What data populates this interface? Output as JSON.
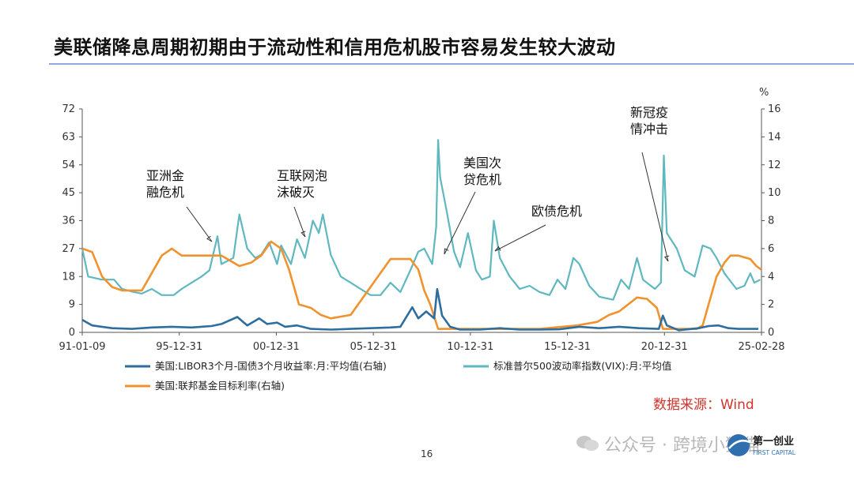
{
  "slide": {
    "title": "美联储降息周期初期由于流动性和信用危机股市容易发生较大波动",
    "page_number": "16",
    "source": "数据来源：Wind",
    "watermark": "公众号 · 跨境小狮猫",
    "logo_text": "第一创业",
    "logo_subtext": "FIRST CAPITAL"
  },
  "chart_data": {
    "type": "line",
    "x_tick_labels": [
      "91-01-09",
      "95-12-31",
      "00-12-31",
      "05-12-31",
      "10-12-31",
      "15-12-31",
      "20-12-31",
      "25-02-28"
    ],
    "y_left": {
      "range": [
        0,
        72
      ],
      "ticks": [
        "0",
        "9",
        "18",
        "27",
        "36",
        "45",
        "54",
        "63",
        "72"
      ]
    },
    "y_right": {
      "range": [
        0,
        16
      ],
      "unit": "%",
      "ticks": [
        "0",
        "2",
        "4",
        "6",
        "8",
        "10",
        "12",
        "14",
        "16"
      ]
    },
    "grid": false,
    "legend_position": "bottom",
    "annotations": [
      {
        "lines": [
          "亚洲金",
          "融危机"
        ]
      },
      {
        "lines": [
          "互联网泡",
          "沫破灭"
        ]
      },
      {
        "lines": [
          "美国次",
          "贷危机"
        ]
      },
      {
        "lines": [
          "欧债危机"
        ]
      },
      {
        "lines": [
          "新冠疫",
          "情冲击"
        ]
      }
    ],
    "series": [
      {
        "name": "美国:LIBOR3个月-国债3个月收益率:月:平均值(右轴)",
        "axis": "right",
        "color": "#2e6e9e",
        "points": [
          [
            1991.0,
            0.9
          ],
          [
            1991.5,
            0.5
          ],
          [
            1992.5,
            0.3
          ],
          [
            1993.5,
            0.25
          ],
          [
            1994.5,
            0.35
          ],
          [
            1995.5,
            0.4
          ],
          [
            1996.5,
            0.35
          ],
          [
            1997.5,
            0.45
          ],
          [
            1998.0,
            0.6
          ],
          [
            1998.8,
            1.1
          ],
          [
            1999.3,
            0.5
          ],
          [
            1999.9,
            1.0
          ],
          [
            2000.3,
            0.6
          ],
          [
            2000.8,
            0.7
          ],
          [
            2001.2,
            0.4
          ],
          [
            2001.8,
            0.5
          ],
          [
            2002.5,
            0.25
          ],
          [
            2003.5,
            0.2
          ],
          [
            2004.5,
            0.25
          ],
          [
            2005.5,
            0.3
          ],
          [
            2006.5,
            0.35
          ],
          [
            2007.0,
            0.4
          ],
          [
            2007.6,
            1.8
          ],
          [
            2007.9,
            1.0
          ],
          [
            2008.3,
            1.5
          ],
          [
            2008.7,
            1.0
          ],
          [
            2008.85,
            3.1
          ],
          [
            2009.1,
            1.2
          ],
          [
            2009.5,
            0.4
          ],
          [
            2010.0,
            0.2
          ],
          [
            2011.0,
            0.2
          ],
          [
            2012.0,
            0.3
          ],
          [
            2013.0,
            0.2
          ],
          [
            2014.0,
            0.2
          ],
          [
            2015.0,
            0.22
          ],
          [
            2016.0,
            0.4
          ],
          [
            2017.0,
            0.3
          ],
          [
            2018.0,
            0.4
          ],
          [
            2019.0,
            0.3
          ],
          [
            2020.0,
            0.25
          ],
          [
            2020.2,
            1.2
          ],
          [
            2020.4,
            0.5
          ],
          [
            2021.0,
            0.15
          ],
          [
            2022.0,
            0.3
          ],
          [
            2022.5,
            0.45
          ],
          [
            2023.0,
            0.5
          ],
          [
            2023.5,
            0.3
          ],
          [
            2024.0,
            0.25
          ],
          [
            2025.0,
            0.25
          ]
        ]
      },
      {
        "name": "标准普尔500波动率指数(VIX):月:平均值",
        "axis": "left",
        "color": "#5fb8c0",
        "points": [
          [
            1991.0,
            27
          ],
          [
            1991.3,
            18
          ],
          [
            1992.0,
            17
          ],
          [
            1992.6,
            17
          ],
          [
            1993.0,
            14
          ],
          [
            1993.6,
            13
          ],
          [
            1994.0,
            12.5
          ],
          [
            1994.5,
            14
          ],
          [
            1995.0,
            12
          ],
          [
            1995.6,
            12
          ],
          [
            1996.0,
            14
          ],
          [
            1996.5,
            16
          ],
          [
            1997.0,
            18
          ],
          [
            1997.4,
            20
          ],
          [
            1997.8,
            31
          ],
          [
            1998.0,
            22
          ],
          [
            1998.6,
            24
          ],
          [
            1998.9,
            38
          ],
          [
            1999.3,
            27
          ],
          [
            1999.7,
            24
          ],
          [
            2000.0,
            25
          ],
          [
            2000.4,
            29
          ],
          [
            2000.8,
            22
          ],
          [
            2001.0,
            28
          ],
          [
            2001.5,
            22
          ],
          [
            2001.8,
            30
          ],
          [
            2002.2,
            24
          ],
          [
            2002.6,
            36
          ],
          [
            2002.9,
            32
          ],
          [
            2003.1,
            38
          ],
          [
            2003.5,
            25
          ],
          [
            2004.0,
            18
          ],
          [
            2004.5,
            16
          ],
          [
            2005.0,
            14
          ],
          [
            2005.5,
            12
          ],
          [
            2006.0,
            12
          ],
          [
            2006.5,
            16
          ],
          [
            2007.0,
            13
          ],
          [
            2007.5,
            20
          ],
          [
            2007.9,
            26
          ],
          [
            2008.2,
            27
          ],
          [
            2008.6,
            22
          ],
          [
            2008.8,
            34
          ],
          [
            2008.9,
            62
          ],
          [
            2009.0,
            50
          ],
          [
            2009.3,
            40
          ],
          [
            2009.7,
            26
          ],
          [
            2010.0,
            21
          ],
          [
            2010.4,
            32
          ],
          [
            2010.8,
            20
          ],
          [
            2011.1,
            17
          ],
          [
            2011.5,
            18
          ],
          [
            2011.7,
            36
          ],
          [
            2012.0,
            24
          ],
          [
            2012.5,
            18
          ],
          [
            2013.0,
            14
          ],
          [
            2013.5,
            15
          ],
          [
            2014.0,
            13
          ],
          [
            2014.5,
            12
          ],
          [
            2014.9,
            17
          ],
          [
            2015.3,
            14
          ],
          [
            2015.7,
            24
          ],
          [
            2016.0,
            22
          ],
          [
            2016.5,
            15
          ],
          [
            2017.0,
            11.5
          ],
          [
            2017.7,
            10.5
          ],
          [
            2018.1,
            17
          ],
          [
            2018.5,
            14
          ],
          [
            2018.9,
            24
          ],
          [
            2019.2,
            17
          ],
          [
            2019.8,
            14
          ],
          [
            2020.1,
            16
          ],
          [
            2020.25,
            57
          ],
          [
            2020.4,
            32
          ],
          [
            2020.9,
            27
          ],
          [
            2021.3,
            20
          ],
          [
            2021.8,
            18
          ],
          [
            2022.2,
            28
          ],
          [
            2022.6,
            27
          ],
          [
            2022.9,
            24
          ],
          [
            2023.3,
            19
          ],
          [
            2023.9,
            14
          ],
          [
            2024.3,
            15
          ],
          [
            2024.6,
            19
          ],
          [
            2024.8,
            16
          ],
          [
            2025.1,
            17
          ]
        ]
      },
      {
        "name": "美国:联邦基金目标利率(右轴)",
        "axis": "right",
        "color": "#f0922d",
        "points": [
          [
            1991.0,
            6.0
          ],
          [
            1991.5,
            5.75
          ],
          [
            1992.0,
            4.0
          ],
          [
            1992.5,
            3.25
          ],
          [
            1993.0,
            3.0
          ],
          [
            1994.0,
            3.0
          ],
          [
            1994.5,
            4.25
          ],
          [
            1995.0,
            5.5
          ],
          [
            1995.5,
            6.0
          ],
          [
            1996.0,
            5.5
          ],
          [
            1997.0,
            5.5
          ],
          [
            1998.0,
            5.5
          ],
          [
            1998.9,
            4.75
          ],
          [
            1999.5,
            5.0
          ],
          [
            2000.0,
            5.5
          ],
          [
            2000.5,
            6.5
          ],
          [
            2001.0,
            6.0
          ],
          [
            2001.4,
            4.5
          ],
          [
            2001.9,
            2.0
          ],
          [
            2002.5,
            1.75
          ],
          [
            2003.0,
            1.25
          ],
          [
            2003.5,
            1.0
          ],
          [
            2004.5,
            1.25
          ],
          [
            2005.0,
            2.25
          ],
          [
            2005.5,
            3.25
          ],
          [
            2006.0,
            4.25
          ],
          [
            2006.5,
            5.25
          ],
          [
            2007.5,
            5.25
          ],
          [
            2007.9,
            4.5
          ],
          [
            2008.2,
            3.0
          ],
          [
            2008.5,
            2.0
          ],
          [
            2008.9,
            0.25
          ],
          [
            2010.0,
            0.25
          ],
          [
            2012.0,
            0.25
          ],
          [
            2014.0,
            0.25
          ],
          [
            2015.9,
            0.5
          ],
          [
            2016.9,
            0.75
          ],
          [
            2017.5,
            1.25
          ],
          [
            2018.0,
            1.5
          ],
          [
            2018.9,
            2.5
          ],
          [
            2019.4,
            2.4
          ],
          [
            2019.9,
            1.75
          ],
          [
            2020.2,
            0.25
          ],
          [
            2021.0,
            0.25
          ],
          [
            2021.9,
            0.25
          ],
          [
            2022.2,
            0.5
          ],
          [
            2022.5,
            2.0
          ],
          [
            2022.9,
            4.0
          ],
          [
            2023.3,
            5.0
          ],
          [
            2023.6,
            5.5
          ],
          [
            2024.0,
            5.5
          ],
          [
            2024.6,
            5.25
          ],
          [
            2024.9,
            4.75
          ],
          [
            2025.15,
            4.5
          ]
        ]
      }
    ]
  }
}
